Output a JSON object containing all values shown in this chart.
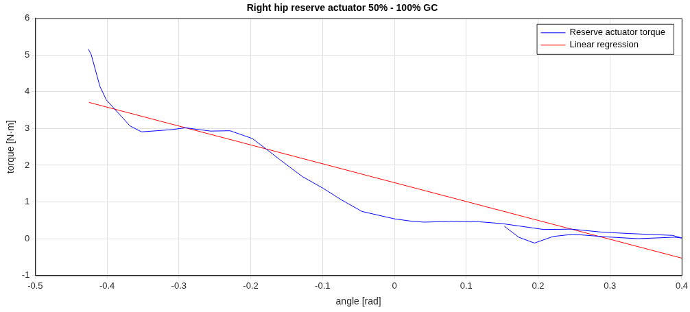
{
  "chart_data": {
    "type": "line",
    "title": "Right hip reserve actuator 50% - 100% GC",
    "xlabel": "angle [rad]",
    "ylabel": "torque [N·m]",
    "xlim": [
      -0.5,
      0.4
    ],
    "xticks": [
      -0.5,
      -0.4,
      -0.3,
      -0.2,
      -0.1,
      0,
      0.1,
      0.2,
      0.3,
      0.4
    ],
    "ylim": [
      -1,
      6
    ],
    "yticks": [
      -1,
      0,
      1,
      2,
      3,
      4,
      5,
      6
    ],
    "grid": true,
    "legend": "top right",
    "marker": "none",
    "line_style": "solid",
    "series": [
      {
        "name": "Reserve actuator torque",
        "color": "#0000ff",
        "x": [
          -0.426,
          -0.422,
          -0.41,
          -0.401,
          -0.368,
          -0.352,
          -0.33,
          -0.31,
          -0.291,
          -0.256,
          -0.229,
          -0.198,
          -0.179,
          -0.16,
          -0.128,
          -0.099,
          -0.074,
          -0.045,
          0.0,
          0.022,
          0.041,
          0.077,
          0.118,
          0.15,
          0.208,
          0.246,
          0.288,
          0.326,
          0.387,
          0.4,
          0.39,
          0.339,
          0.294,
          0.249,
          0.221,
          0.195,
          0.173,
          0.153
        ],
        "values": [
          5.16,
          5.01,
          4.15,
          3.78,
          3.07,
          2.91,
          2.94,
          2.97,
          3.02,
          2.93,
          2.94,
          2.73,
          2.45,
          2.16,
          1.69,
          1.37,
          1.06,
          0.74,
          0.54,
          0.48,
          0.45,
          0.47,
          0.46,
          0.41,
          0.25,
          0.26,
          0.18,
          0.14,
          0.09,
          0.02,
          0.04,
          0.0,
          0.05,
          0.12,
          0.06,
          -0.12,
          0.04,
          0.34
        ]
      },
      {
        "name": "Linear regression",
        "color": "#ff0000",
        "x": [
          -0.425,
          0.4
        ],
        "values": [
          3.71,
          -0.53
        ]
      }
    ]
  }
}
